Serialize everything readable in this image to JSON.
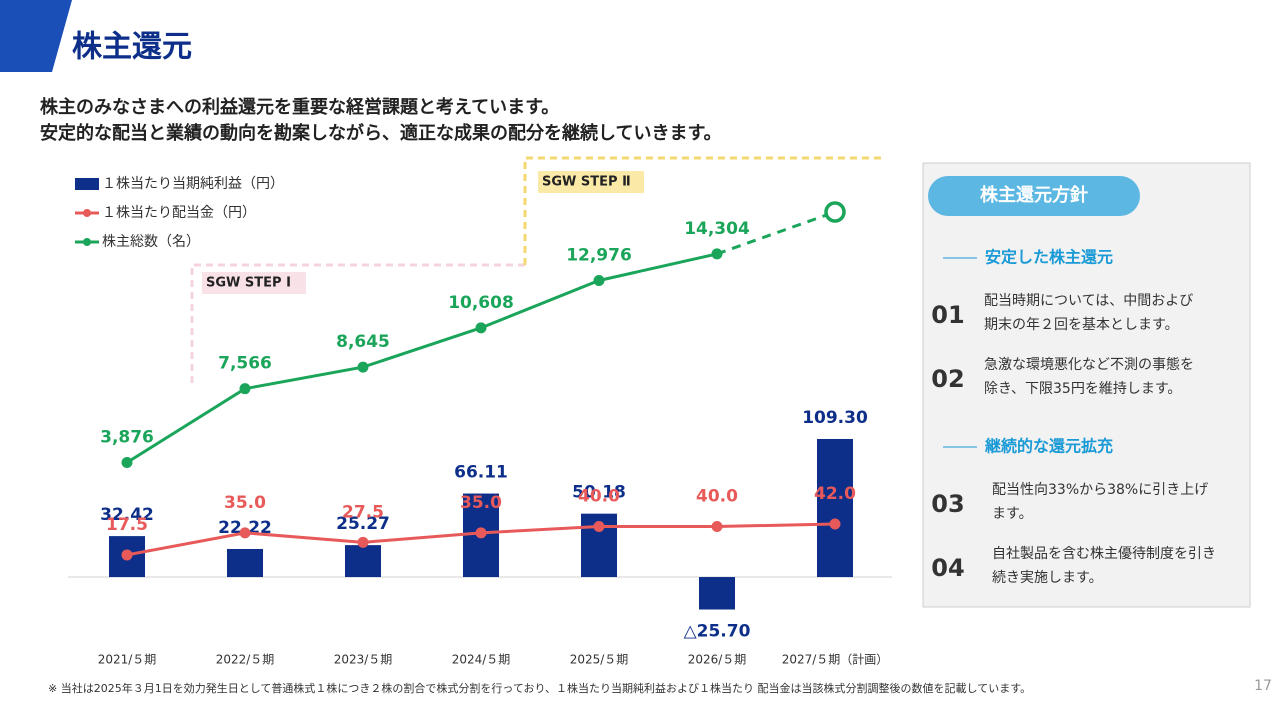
{
  "header": {
    "title": "株主還元",
    "lead": [
      "株主のみなさまへの利益還元を重要な経営課題と考えています。",
      "安定的な配当と業績の動向を勘案しながら、適正な成果の配分を継続していきます。"
    ]
  },
  "chart_data": {
    "type": "combo",
    "categories": [
      "2021/５期",
      "2022/５期",
      "2023/５期",
      "2024/５期",
      "2025/５期",
      "2026/５期",
      "2027/５期（計画）"
    ],
    "ylim": [
      -34,
      346
    ],
    "y2lim": [
      -4000,
      20000
    ],
    "dashed_last": true,
    "series": [
      {
        "name": "１株当たり当期純利益（円）",
        "type": "bar",
        "color": "#0d2f8a",
        "values": [
          32.42,
          22.22,
          25.27,
          66.11,
          50.18,
          -25.7,
          109.3
        ],
        "value_labels": [
          "32.42",
          "22.22",
          "25.27",
          "66.11",
          "50.18",
          "△25.70",
          "109.30"
        ]
      },
      {
        "name": "１株当たり配当金（円）",
        "type": "line",
        "color": "#e85a5a",
        "values": [
          17.5,
          35.0,
          27.5,
          35.0,
          40.0,
          40.0,
          42.0
        ],
        "value_labels": [
          "17.5",
          "35.0",
          "27.5",
          "35.0",
          "40.0",
          "40.0",
          "42.0"
        ]
      },
      {
        "name": "株主総数（名）",
        "type": "line",
        "axis": "y2",
        "color": "#1aa55a",
        "values": [
          3876,
          7566,
          8645,
          10608,
          12976,
          14304,
          16400
        ],
        "value_labels": [
          "3,876",
          "7,566",
          "8,645",
          "10,608",
          "12,976",
          "14,304",
          null
        ]
      }
    ]
  },
  "steps": [
    "SGW STEP Ⅰ",
    "SGW STEP Ⅱ"
  ],
  "policy": {
    "title": "株主還元方針",
    "sections": [
      {
        "heading": "安定した株主還元",
        "items": [
          {
            "number": "01",
            "lines": [
              "配当時期については、中間および",
              "期末の年２回を基本とします。"
            ]
          },
          {
            "number": "02",
            "lines": [
              "急激な環境悪化など不測の事態を",
              "除き、下限35円を維持します。"
            ]
          }
        ]
      },
      {
        "heading": "継続的な還元拡充",
        "items": [
          {
            "number": "03",
            "lines": [
              "配当性向33%から38%に引き上げ",
              "ます。"
            ]
          },
          {
            "number": "04",
            "lines": [
              "自社製品を含む株主優待制度を引き",
              "続き実施します。"
            ]
          }
        ]
      }
    ]
  },
  "footnote": "※ 当社は2025年３月1日を効力発生日として普通株式１株につき２株の割合で株式分割を行っており、１株当たり当期純利益および１株当たり 配当金は当該株式分割調整後の数値を記載しています。",
  "page_number": "17"
}
